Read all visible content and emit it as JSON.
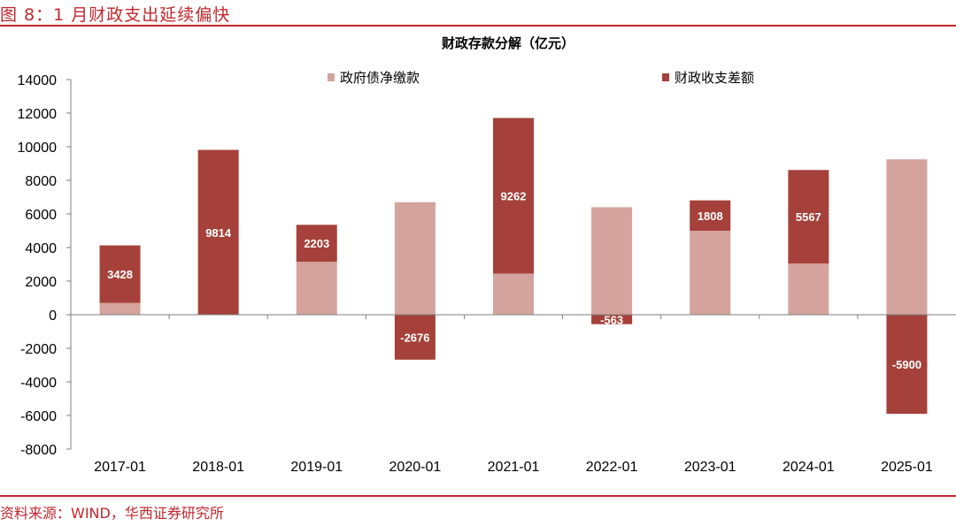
{
  "header": {
    "figure_title": "图 8：1 月财政支出延续偏快"
  },
  "footer": {
    "source": "资料来源：WIND，华西证券研究所"
  },
  "colors": {
    "accent": "#c0272d",
    "series_1": "#d4a39d",
    "series_2": "#a5413a"
  },
  "chart_data": {
    "type": "bar",
    "stacked": true,
    "title": "财政存款分解（亿元）",
    "categories": [
      "2017-01",
      "2018-01",
      "2019-01",
      "2020-01",
      "2021-01",
      "2022-01",
      "2023-01",
      "2024-01",
      "2025-01"
    ],
    "series": [
      {
        "name": "政府债净缴款",
        "color": "#d4a39d",
        "values": [
          700,
          0,
          3150,
          6700,
          2450,
          6400,
          5000,
          3050,
          9250
        ],
        "labels": [
          "",
          "",
          "",
          "",
          "",
          "",
          "",
          "",
          ""
        ]
      },
      {
        "name": "财政收支差额",
        "color": "#a5413a",
        "values": [
          3428,
          9814,
          2203,
          -2676,
          9262,
          -563,
          1808,
          5567,
          -5900
        ],
        "labels": [
          "3428",
          "9814",
          "2203",
          "-2676",
          "9262",
          "-563",
          "1808",
          "5567",
          "-5900"
        ]
      }
    ],
    "ylim": [
      -8000,
      14000
    ],
    "yticks": [
      14000,
      12000,
      10000,
      8000,
      6000,
      4000,
      2000,
      0,
      -2000,
      -4000,
      -6000,
      -8000
    ],
    "ytick_labels": [
      "14000",
      "12000",
      "10000",
      "8000",
      "6000",
      "4000",
      "2000",
      "0",
      "-2000",
      "-4000",
      "-6000",
      "-8000"
    ],
    "legend_position": "top",
    "grid": false
  }
}
